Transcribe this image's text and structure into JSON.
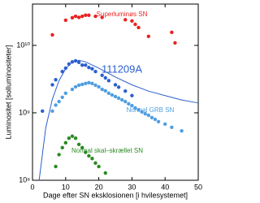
{
  "chart_data": {
    "type": "scatter",
    "xlabel": "Dage efter SN eksklosionen  [i hvilesystemet]",
    "ylabel": "Luminositet  [solluminositeter]",
    "xlim": [
      0,
      50
    ],
    "xticks": [
      0,
      10,
      20,
      30,
      40,
      50
    ],
    "ylim": [
      100000000,
      41000000000
    ],
    "ylog": true,
    "yticks": [
      {
        "value": 100000000,
        "label": "10⁸"
      },
      {
        "value": 1000000000,
        "label": "10⁹"
      },
      {
        "value": 10000000000,
        "label": "10¹⁰"
      }
    ],
    "series": [
      {
        "name": "Superluminøs SN",
        "color": "#e8231f",
        "x": [
          6,
          10,
          12,
          13,
          14,
          15,
          16,
          17,
          19,
          21,
          28,
          30,
          31,
          32,
          35,
          42,
          43
        ],
        "values": [
          14300000000,
          23600000000,
          25700000000,
          27000000000,
          26000000000,
          27000000000,
          28000000000,
          28000000000,
          27000000000,
          26000000000,
          24000000000,
          23000000000,
          20500000000,
          18400000000,
          13600000000,
          15600000000,
          10900000000
        ]
      },
      {
        "name": "111209A",
        "color": "#2c5fd0",
        "x": [
          3,
          6,
          7,
          9,
          10,
          11,
          12,
          13,
          14,
          15,
          16,
          17,
          18,
          19,
          21,
          22,
          23,
          25,
          26,
          28,
          30
        ],
        "values": [
          1060000000,
          2600000000,
          3100000000,
          4100000000,
          4600000000,
          5300000000,
          5700000000,
          5900000000,
          5600000000,
          5100000000,
          5100000000,
          4700000000,
          4500000000,
          4100000000,
          3600000000,
          3300000000,
          3000000000,
          2600000000,
          2400000000,
          2100000000,
          1800000000
        ]
      },
      {
        "color": "#2c5fd0",
        "line": true,
        "x": [
          2,
          4,
          6,
          8,
          10,
          12,
          14,
          16,
          20,
          25,
          30,
          35,
          40,
          45,
          50
        ],
        "values": [
          100000000,
          600000000,
          1600000000,
          3000000000,
          4500000000,
          5700000000,
          6000000000,
          5700000000,
          4600000000,
          3400000000,
          2600000000,
          2100000000,
          1800000000,
          1550000000,
          1400000000
        ]
      },
      {
        "name": "Normal GRB SN",
        "color": "#4f9ee0",
        "x": [
          6,
          7,
          8,
          9,
          10,
          12,
          13,
          14,
          15,
          16,
          17,
          18,
          19,
          20,
          21,
          22,
          23,
          24,
          25,
          26,
          27,
          28,
          29,
          30,
          31,
          32,
          33,
          34,
          35,
          36,
          37,
          38,
          40,
          42,
          45
        ],
        "values": [
          1060000000,
          1300000000,
          1470000000,
          1700000000,
          1950000000,
          2230000000,
          2430000000,
          2570000000,
          2640000000,
          2720000000,
          2800000000,
          2720000000,
          2570000000,
          2430000000,
          2230000000,
          2120000000,
          1950000000,
          1840000000,
          1740000000,
          1650000000,
          1560000000,
          1470000000,
          1360000000,
          1280000000,
          1180000000,
          1110000000,
          1030000000,
          970000000,
          920000000,
          850000000,
          800000000,
          740000000,
          680000000,
          610000000,
          540000000
        ]
      },
      {
        "name": "Normal skal–skrællet SN",
        "color": "#2a8a22",
        "x": [
          7,
          8,
          9,
          10,
          11,
          12,
          13,
          14,
          15,
          16,
          17,
          18,
          19,
          20,
          22
        ],
        "values": [
          160000000,
          240000000,
          305000000,
          360000000,
          420000000,
          450000000,
          420000000,
          340000000,
          305000000,
          260000000,
          230000000,
          210000000,
          180000000,
          160000000,
          128000000
        ]
      }
    ]
  }
}
